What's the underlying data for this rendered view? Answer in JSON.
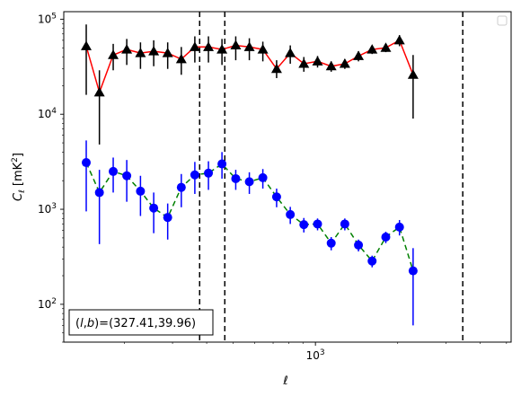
{
  "chart_data": {
    "type": "scatter",
    "xscale": "log",
    "yscale": "log",
    "xlim": [
      120,
      5200
    ],
    "ylim": [
      40,
      120000
    ],
    "xlabel": "ℓ",
    "ylabel": "C_ℓ  [mK²]",
    "ylabel_parts": {
      "main": "C",
      "sub": "ℓ",
      "unit_open": "  [mK",
      "unit_sup": "2",
      "unit_close": "]"
    },
    "xtick_labels": [
      {
        "value": 1000,
        "base": "10",
        "exp": "3"
      }
    ],
    "ytick_labels": [
      {
        "value": 100,
        "base": "10",
        "exp": "2"
      },
      {
        "value": 1000,
        "base": "10",
        "exp": "3"
      },
      {
        "value": 10000,
        "base": "10",
        "exp": "4"
      },
      {
        "value": 100000,
        "base": "10",
        "exp": "5"
      }
    ],
    "vlines": [
      377,
      466,
      3460
    ],
    "legend_placement": "top-right",
    "annotation": "(l,b)=(327.41,39.96)",
    "annotation_parts": {
      "open": "(",
      "l": "l",
      "comma": ",",
      "b": "b",
      "close": ")=(327.41,39.96)"
    },
    "grid": false,
    "series": [
      {
        "color": "#ff0000",
        "marker_color": "#000000",
        "marker": "triangle",
        "linestyle": "solid",
        "points": [
          {
            "x": 145,
            "y": 52000,
            "ylo": 16000,
            "yhi": 88000
          },
          {
            "x": 162,
            "y": 17000,
            "ylo": 4800,
            "yhi": 29000
          },
          {
            "x": 182,
            "y": 42000,
            "ylo": 29000,
            "yhi": 55000
          },
          {
            "x": 204,
            "y": 48000,
            "ylo": 33000,
            "yhi": 62000
          },
          {
            "x": 229,
            "y": 44000,
            "ylo": 30000,
            "yhi": 57000
          },
          {
            "x": 256,
            "y": 46000,
            "ylo": 32000,
            "yhi": 60000
          },
          {
            "x": 288,
            "y": 44000,
            "ylo": 30000,
            "yhi": 57000
          },
          {
            "x": 323,
            "y": 38000,
            "ylo": 26000,
            "yhi": 51000
          },
          {
            "x": 362,
            "y": 51000,
            "ylo": 35000,
            "yhi": 66000
          },
          {
            "x": 406,
            "y": 51000,
            "ylo": 35000,
            "yhi": 66000
          },
          {
            "x": 455,
            "y": 48000,
            "ylo": 33000,
            "yhi": 62000
          },
          {
            "x": 511,
            "y": 53000,
            "ylo": 37000,
            "yhi": 66000
          },
          {
            "x": 573,
            "y": 51000,
            "ylo": 37000,
            "yhi": 63000
          },
          {
            "x": 642,
            "y": 48000,
            "ylo": 36000,
            "yhi": 58000
          },
          {
            "x": 721,
            "y": 30000,
            "ylo": 24000,
            "yhi": 37000
          },
          {
            "x": 809,
            "y": 44000,
            "ylo": 34000,
            "yhi": 53000
          },
          {
            "x": 907,
            "y": 34000,
            "ylo": 28000,
            "yhi": 40000
          },
          {
            "x": 1018,
            "y": 36000,
            "ylo": 31000,
            "yhi": 41000
          },
          {
            "x": 1142,
            "y": 32000,
            "ylo": 28000,
            "yhi": 36000
          },
          {
            "x": 1281,
            "y": 34000,
            "ylo": 30000,
            "yhi": 38000
          },
          {
            "x": 1437,
            "y": 41000,
            "ylo": 36000,
            "yhi": 46000
          },
          {
            "x": 1612,
            "y": 48000,
            "ylo": 43000,
            "yhi": 53000
          },
          {
            "x": 1809,
            "y": 50000,
            "ylo": 45000,
            "yhi": 55000
          },
          {
            "x": 2030,
            "y": 60000,
            "ylo": 52000,
            "yhi": 68000
          },
          {
            "x": 2277,
            "y": 26000,
            "ylo": 9000,
            "yhi": 42000
          }
        ]
      },
      {
        "color": "#008000",
        "marker_color": "#0000ff",
        "errorbar_color": "#0000ff",
        "marker": "circle",
        "linestyle": "dashed",
        "points": [
          {
            "x": 145,
            "y": 3100,
            "ylo": 950,
            "yhi": 5300
          },
          {
            "x": 162,
            "y": 1500,
            "ylo": 430,
            "yhi": 2600
          },
          {
            "x": 182,
            "y": 2500,
            "ylo": 1500,
            "yhi": 3500
          },
          {
            "x": 204,
            "y": 2250,
            "ylo": 1200,
            "yhi": 3300
          },
          {
            "x": 229,
            "y": 1550,
            "ylo": 850,
            "yhi": 2250
          },
          {
            "x": 256,
            "y": 1030,
            "ylo": 560,
            "yhi": 1500
          },
          {
            "x": 288,
            "y": 820,
            "ylo": 480,
            "yhi": 1150
          },
          {
            "x": 323,
            "y": 1700,
            "ylo": 1050,
            "yhi": 2350
          },
          {
            "x": 362,
            "y": 2300,
            "ylo": 1450,
            "yhi": 3150
          },
          {
            "x": 406,
            "y": 2400,
            "ylo": 1600,
            "yhi": 3200
          },
          {
            "x": 455,
            "y": 3000,
            "ylo": 2100,
            "yhi": 4000
          },
          {
            "x": 511,
            "y": 2100,
            "ylo": 1600,
            "yhi": 2600
          },
          {
            "x": 573,
            "y": 1950,
            "ylo": 1450,
            "yhi": 2450
          },
          {
            "x": 642,
            "y": 2150,
            "ylo": 1650,
            "yhi": 2650
          },
          {
            "x": 721,
            "y": 1350,
            "ylo": 1050,
            "yhi": 1650
          },
          {
            "x": 809,
            "y": 880,
            "ylo": 700,
            "yhi": 1060
          },
          {
            "x": 907,
            "y": 690,
            "ylo": 570,
            "yhi": 810
          },
          {
            "x": 1018,
            "y": 700,
            "ylo": 600,
            "yhi": 800
          },
          {
            "x": 1142,
            "y": 440,
            "ylo": 370,
            "yhi": 510
          },
          {
            "x": 1281,
            "y": 700,
            "ylo": 600,
            "yhi": 800
          },
          {
            "x": 1437,
            "y": 420,
            "ylo": 360,
            "yhi": 480
          },
          {
            "x": 1612,
            "y": 285,
            "ylo": 245,
            "yhi": 325
          },
          {
            "x": 1809,
            "y": 510,
            "ylo": 440,
            "yhi": 580
          },
          {
            "x": 2030,
            "y": 650,
            "ylo": 530,
            "yhi": 770
          },
          {
            "x": 2277,
            "y": 225,
            "ylo": 60,
            "yhi": 390
          }
        ]
      }
    ]
  }
}
